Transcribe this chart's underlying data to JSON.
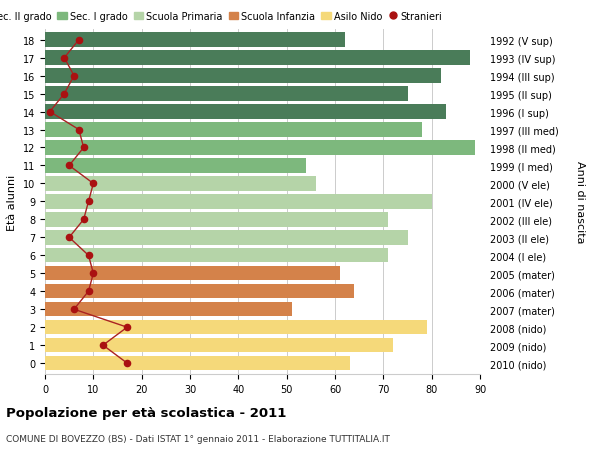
{
  "ages": [
    18,
    17,
    16,
    15,
    14,
    13,
    12,
    11,
    10,
    9,
    8,
    7,
    6,
    5,
    4,
    3,
    2,
    1,
    0
  ],
  "anni_nascita": [
    "1992 (V sup)",
    "1993 (IV sup)",
    "1994 (III sup)",
    "1995 (II sup)",
    "1996 (I sup)",
    "1997 (III med)",
    "1998 (II med)",
    "1999 (I med)",
    "2000 (V ele)",
    "2001 (IV ele)",
    "2002 (III ele)",
    "2003 (II ele)",
    "2004 (I ele)",
    "2005 (mater)",
    "2006 (mater)",
    "2007 (mater)",
    "2008 (nido)",
    "2009 (nido)",
    "2010 (nido)"
  ],
  "bar_values": [
    62,
    88,
    82,
    75,
    83,
    78,
    89,
    54,
    56,
    80,
    71,
    75,
    71,
    61,
    64,
    51,
    79,
    72,
    63
  ],
  "bar_colors": [
    "#4a7c59",
    "#4a7c59",
    "#4a7c59",
    "#4a7c59",
    "#4a7c59",
    "#7db87d",
    "#7db87d",
    "#7db87d",
    "#b5d4a8",
    "#b5d4a8",
    "#b5d4a8",
    "#b5d4a8",
    "#b5d4a8",
    "#d4824a",
    "#d4824a",
    "#d4824a",
    "#f5d97a",
    "#f5d97a",
    "#f5d97a"
  ],
  "stranieri_values": [
    7,
    4,
    6,
    4,
    1,
    7,
    8,
    5,
    10,
    9,
    8,
    5,
    9,
    10,
    9,
    6,
    17,
    12,
    17
  ],
  "legend_labels": [
    "Sec. II grado",
    "Sec. I grado",
    "Scuola Primaria",
    "Scuola Infanzia",
    "Asilo Nido",
    "Stranieri"
  ],
  "legend_colors": [
    "#4a7c59",
    "#7db87d",
    "#b5d4a8",
    "#d4824a",
    "#f5d97a",
    "#aa1111"
  ],
  "title": "Popolazione per età scolastica - 2011",
  "subtitle": "COMUNE DI BOVEZZO (BS) - Dati ISTAT 1° gennaio 2011 - Elaborazione TUTTITALIA.IT",
  "ylabel_left": "Età alunni",
  "ylabel_right": "Anni di nascita",
  "xlim": [
    0,
    90
  ],
  "background_color": "#ffffff",
  "bar_height": 0.8,
  "grid_color": "#cccccc",
  "stranieri_color": "#aa1111",
  "stranieri_linecolor": "#aa2222"
}
